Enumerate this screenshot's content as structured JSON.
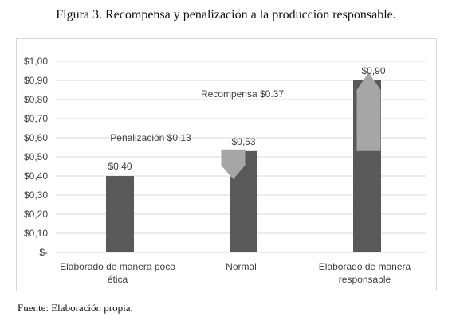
{
  "caption": "Figura 3. Recompensa y penalización a la producción responsable.",
  "source": "Fuente: Elaboración propia.",
  "chart_data": {
    "type": "bar",
    "title": "",
    "xlabel": "",
    "ylabel": "",
    "ylim": [
      0,
      1.0
    ],
    "ytick_labels": [
      "$-",
      "$0,10",
      "$0,20",
      "$0,30",
      "$0,40",
      "$0,50",
      "$0,60",
      "$0,70",
      "$0,80",
      "$0,90",
      "$1,00"
    ],
    "grid": true,
    "categories": [
      "Elaborado de manera poco ética",
      "Normal",
      "Elaborado de manera responsable"
    ],
    "category_lines": [
      [
        "Elaborado de manera poco",
        "ética"
      ],
      [
        "Normal"
      ],
      [
        "Elaborado de manera",
        "responsable"
      ]
    ],
    "values": [
      0.4,
      0.53,
      0.9
    ],
    "data_labels": [
      "$0,40",
      "$0,53",
      "$0,90"
    ],
    "bar_color": "#595959",
    "arrow_color": "#a6a6a6",
    "annotations": [
      {
        "text": "Penalización $0.13",
        "type": "down-arrow",
        "category": 1,
        "from": 0.53,
        "to": 0.4
      },
      {
        "text": "Recompensa $0.37",
        "type": "up-arrow",
        "category": 2,
        "from": 0.53,
        "to": 0.9
      }
    ]
  }
}
